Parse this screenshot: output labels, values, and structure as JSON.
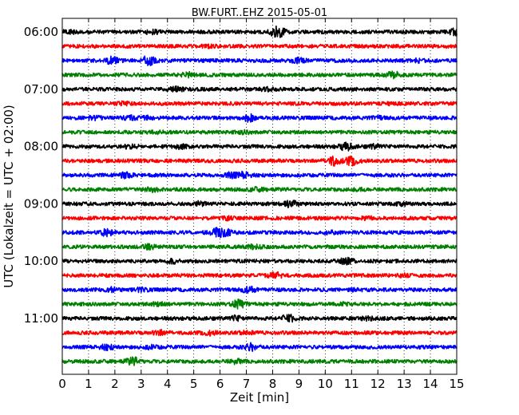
{
  "chart_data": {
    "type": "line",
    "subtype": "helicorder",
    "title": "BW.FURT..EHZ 2015-05-01",
    "xlabel": "Zeit  [min]",
    "ylabel": "UTC (Lokalzeit = UTC + 02:00)",
    "xlim": [
      0,
      15
    ],
    "x_ticks": [
      "0",
      "1",
      "2",
      "3",
      "4",
      "5",
      "6",
      "7",
      "8",
      "9",
      "10",
      "11",
      "12",
      "13",
      "14",
      "15"
    ],
    "y_tick_labels": [
      "06:00",
      "07:00",
      "08:00",
      "09:00",
      "10:00",
      "11:00"
    ],
    "trace_interval_minutes": 15,
    "start_time": "06:00",
    "grid": "dotted vertical lines at each minute",
    "trace_colors": [
      "#000000",
      "#ff0000",
      "#0000ff",
      "#008000"
    ],
    "series": [
      {
        "label": "06:00",
        "color": "#000000",
        "events": [
          [
            0.3,
            0.8
          ],
          [
            3.4,
            0.8
          ],
          [
            8.1,
            1.5
          ],
          [
            8.3,
            1.2
          ],
          [
            14.9,
            1.2
          ]
        ]
      },
      {
        "label": "06:15",
        "color": "#ff0000",
        "events": [
          [
            5.5,
            0.4
          ]
        ]
      },
      {
        "label": "06:30",
        "color": "#0000ff",
        "events": [
          [
            1.9,
            1.5
          ],
          [
            3.3,
            2.4
          ],
          [
            9.0,
            0.9
          ],
          [
            13.5,
            0.6
          ]
        ]
      },
      {
        "label": "06:45",
        "color": "#008000",
        "events": [
          [
            4.8,
            0.9
          ],
          [
            12.6,
            1.2
          ]
        ]
      },
      {
        "label": "07:00",
        "color": "#000000",
        "events": [
          [
            4.3,
            1.0
          ],
          [
            7.8,
            0.5
          ]
        ]
      },
      {
        "label": "07:15",
        "color": "#ff0000",
        "events": [
          [
            2.3,
            0.5
          ],
          [
            12.5,
            0.4
          ]
        ]
      },
      {
        "label": "07:30",
        "color": "#0000ff",
        "events": [
          [
            1.2,
            0.6
          ],
          [
            2.6,
            0.7
          ],
          [
            3.2,
            0.6
          ],
          [
            7.1,
            1.5
          ],
          [
            12.0,
            0.5
          ]
        ]
      },
      {
        "label": "07:45",
        "color": "#008000",
        "events": [
          [
            3.6,
            0.5
          ],
          [
            6.9,
            0.5
          ]
        ]
      },
      {
        "label": "08:00",
        "color": "#000000",
        "events": [
          [
            2.6,
            0.8
          ],
          [
            4.5,
            0.7
          ],
          [
            10.8,
            1.6
          ],
          [
            11.9,
            0.7
          ]
        ]
      },
      {
        "label": "08:15",
        "color": "#ff0000",
        "events": [
          [
            10.3,
            2.0
          ],
          [
            11.0,
            1.8
          ]
        ]
      },
      {
        "label": "08:30",
        "color": "#0000ff",
        "events": [
          [
            2.4,
            1.0
          ],
          [
            6.4,
            1.0
          ],
          [
            6.9,
            1.2
          ]
        ]
      },
      {
        "label": "08:45",
        "color": "#008000",
        "events": [
          [
            3.4,
            0.8
          ],
          [
            7.4,
            0.6
          ],
          [
            11.3,
            0.4
          ]
        ]
      },
      {
        "label": "09:00",
        "color": "#000000",
        "events": [
          [
            5.2,
            0.8
          ],
          [
            8.7,
            1.4
          ],
          [
            12.9,
            0.5
          ]
        ]
      },
      {
        "label": "09:15",
        "color": "#ff0000",
        "events": [
          [
            6.3,
            0.5
          ],
          [
            11.6,
            0.4
          ]
        ]
      },
      {
        "label": "09:30",
        "color": "#0000ff",
        "events": [
          [
            1.7,
            1.5
          ],
          [
            5.9,
            1.6
          ],
          [
            6.2,
            1.3
          ],
          [
            10.2,
            0.5
          ]
        ]
      },
      {
        "label": "09:45",
        "color": "#008000",
        "events": [
          [
            3.3,
            0.8
          ],
          [
            7.3,
            0.7
          ]
        ]
      },
      {
        "label": "10:00",
        "color": "#000000",
        "events": [
          [
            4.2,
            0.8
          ],
          [
            10.8,
            1.2
          ]
        ]
      },
      {
        "label": "10:15",
        "color": "#ff0000",
        "events": [
          [
            8.1,
            1.4
          ],
          [
            13.0,
            0.5
          ]
        ]
      },
      {
        "label": "10:30",
        "color": "#0000ff",
        "events": [
          [
            1.9,
            0.9
          ],
          [
            3.0,
            0.7
          ],
          [
            7.1,
            1.2
          ],
          [
            11.1,
            0.5
          ]
        ]
      },
      {
        "label": "10:45",
        "color": "#008000",
        "events": [
          [
            3.7,
            0.9
          ],
          [
            6.7,
            1.8
          ],
          [
            10.7,
            0.5
          ]
        ]
      },
      {
        "label": "11:00",
        "color": "#000000",
        "events": [
          [
            6.6,
            0.9
          ],
          [
            8.6,
            1.5
          ],
          [
            11.6,
            0.5
          ]
        ]
      },
      {
        "label": "11:15",
        "color": "#ff0000",
        "events": [
          [
            3.7,
            1.0
          ],
          [
            5.6,
            0.8
          ],
          [
            7.0,
            0.6
          ]
        ]
      },
      {
        "label": "11:30",
        "color": "#0000ff",
        "events": [
          [
            1.7,
            1.0
          ],
          [
            3.4,
            0.7
          ],
          [
            7.2,
            1.5
          ]
        ]
      },
      {
        "label": "11:45",
        "color": "#008000",
        "events": [
          [
            2.7,
            1.6
          ],
          [
            6.6,
            0.9
          ]
        ]
      }
    ]
  }
}
